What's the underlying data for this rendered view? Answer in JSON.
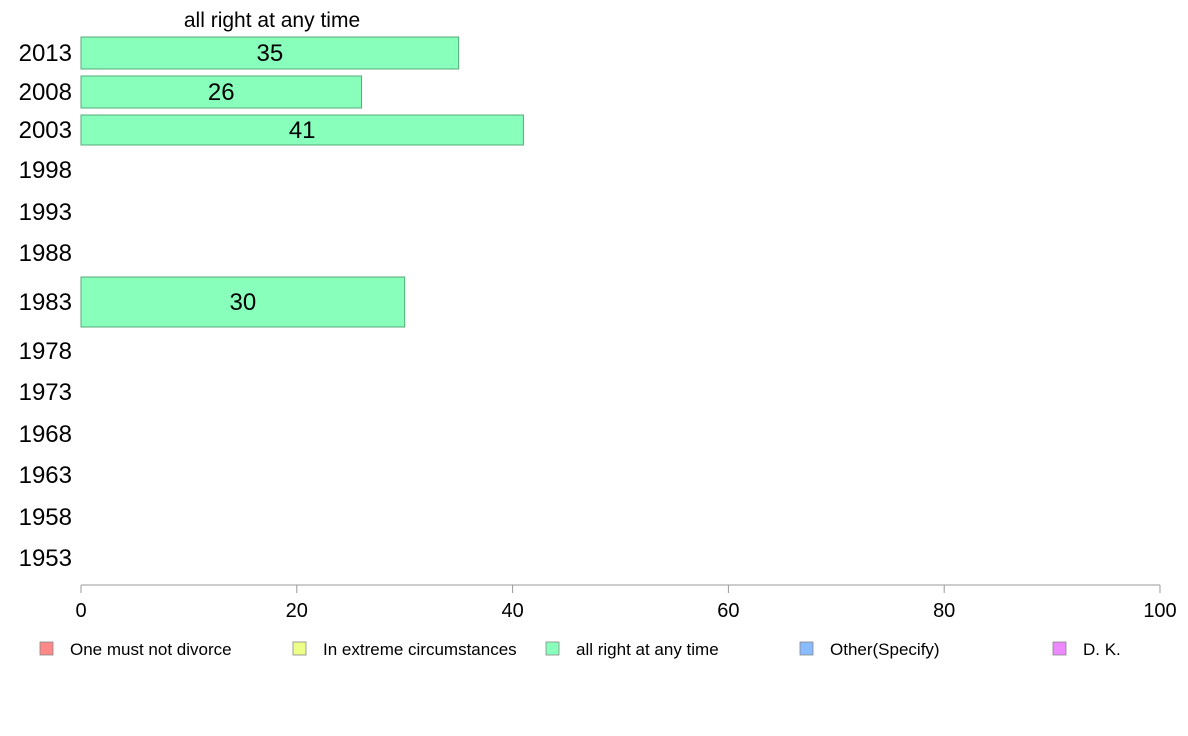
{
  "chart_data": {
    "type": "bar",
    "orientation": "horizontal",
    "title": "all right at any time",
    "categories": [
      "2013",
      "2008",
      "2003",
      "1998",
      "1993",
      "1988",
      "1983",
      "1978",
      "1973",
      "1968",
      "1963",
      "1958",
      "1953"
    ],
    "values": [
      35,
      26,
      41,
      null,
      null,
      null,
      30,
      null,
      null,
      null,
      null,
      null,
      null
    ],
    "bar_labels": [
      "35",
      "26",
      "41",
      "",
      "",
      "",
      "30",
      "",
      "",
      "",
      "",
      "",
      ""
    ],
    "xlim": [
      0,
      100
    ],
    "xticks": [
      0,
      20,
      40,
      60,
      80,
      100
    ],
    "xtick_labels": [
      "0",
      "20",
      "40",
      "60",
      "80",
      "100"
    ],
    "grid": false,
    "bar_color": "#88ffbb",
    "bar_stroke": "#55aa77",
    "legend": {
      "position": "bottom",
      "items": [
        {
          "label": "One must not divorce",
          "color": "#ff8888"
        },
        {
          "label": "In extreme circumstances",
          "color": "#eeff88"
        },
        {
          "label": "all right at any time",
          "color": "#88ffbb"
        },
        {
          "label": "Other(Specify)",
          "color": "#88bbff"
        },
        {
          "label": "D. K.",
          "color": "#ee88ff"
        }
      ]
    }
  }
}
